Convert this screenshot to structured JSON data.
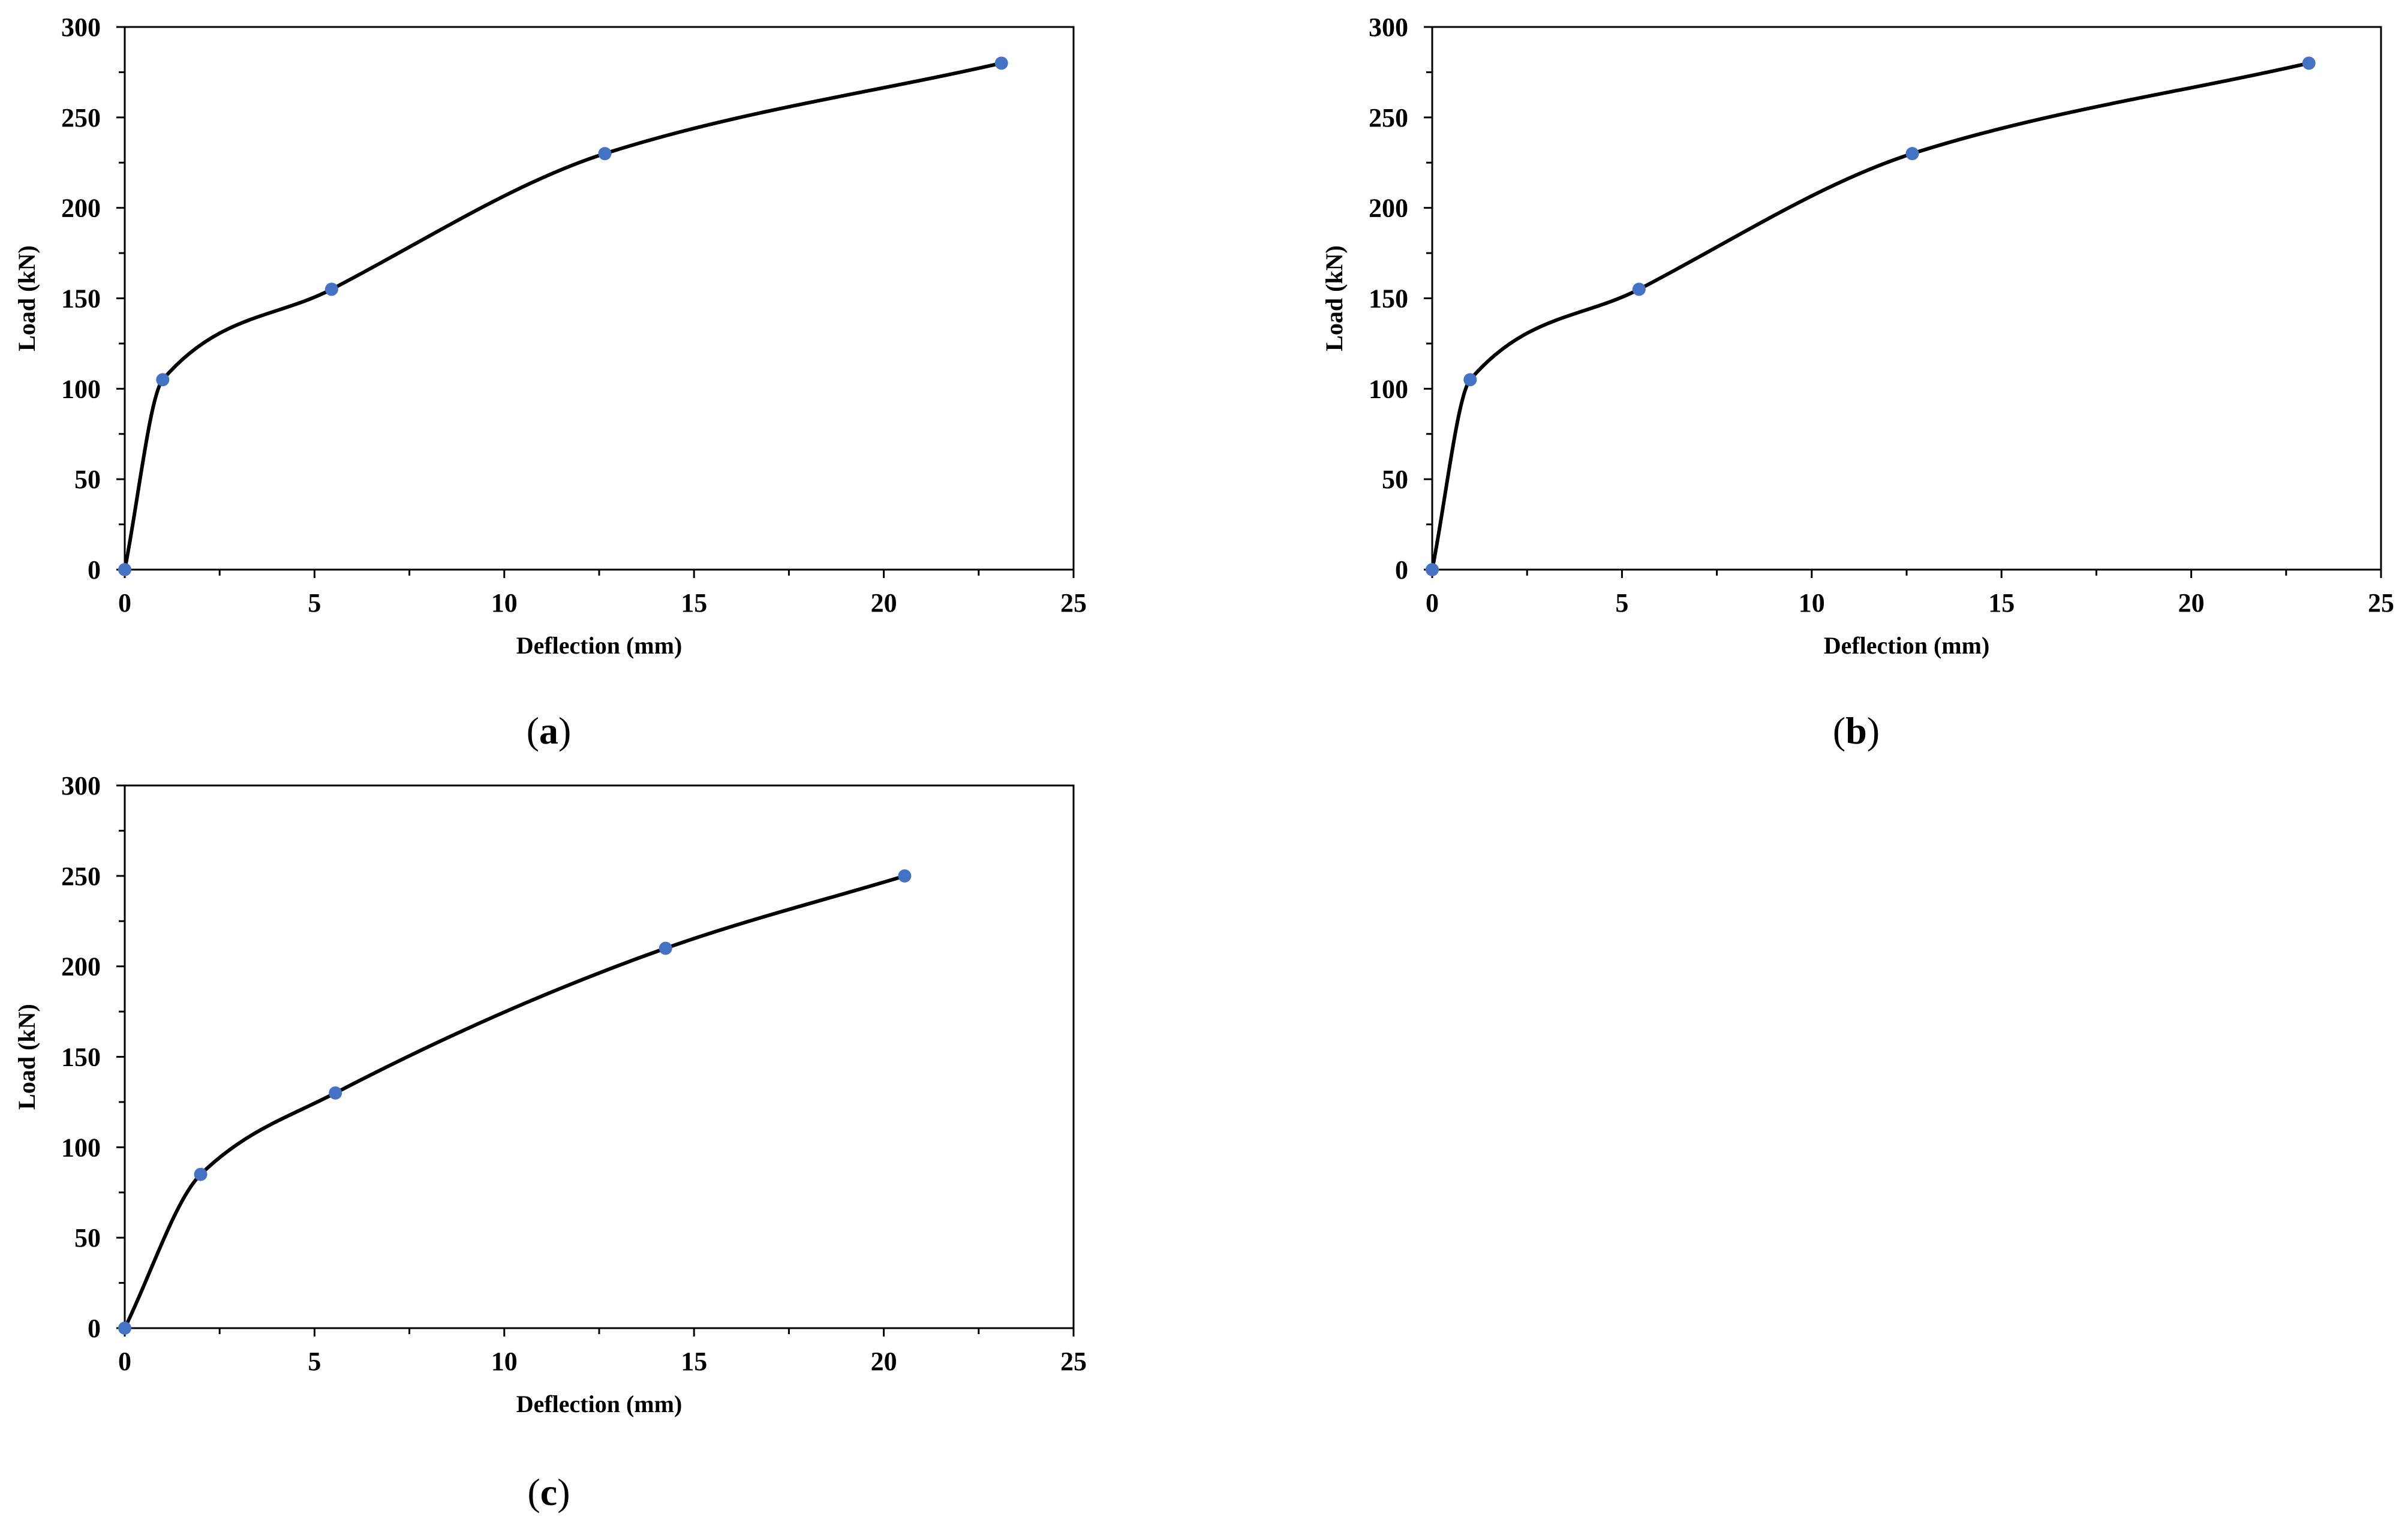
{
  "figure": {
    "panels_count": 3
  },
  "chart_data": [
    {
      "type": "line",
      "panel_label": "a",
      "xlabel": "Deflection (mm)",
      "ylabel": "Load (kN)",
      "xlim": [
        0,
        25
      ],
      "ylim": [
        0,
        300
      ],
      "x_ticks": [
        0,
        5,
        10,
        15,
        20,
        25
      ],
      "y_ticks": [
        0,
        50,
        100,
        150,
        200,
        250,
        300
      ],
      "series": [
        {
          "x": [
            0,
            1,
            5.45,
            12.65,
            23.1
          ],
          "y": [
            0,
            105,
            155,
            230,
            280
          ]
        }
      ],
      "line_color": "#000000",
      "marker_color": "#4472C4",
      "grid": false,
      "legend": "none"
    },
    {
      "type": "line",
      "panel_label": "b",
      "xlabel": "Deflection (mm)",
      "ylabel": "Load (kN)",
      "xlim": [
        0,
        25
      ],
      "ylim": [
        0,
        300
      ],
      "x_ticks": [
        0,
        5,
        10,
        15,
        20,
        25
      ],
      "y_ticks": [
        0,
        50,
        100,
        150,
        200,
        250,
        300
      ],
      "series": [
        {
          "x": [
            0,
            1,
            5.45,
            12.65,
            23.1
          ],
          "y": [
            0,
            105,
            155,
            230,
            280
          ]
        }
      ],
      "line_color": "#000000",
      "marker_color": "#4472C4",
      "grid": false,
      "legend": "none"
    },
    {
      "type": "line",
      "panel_label": "c",
      "xlabel": "Deflection (mm)",
      "ylabel": "Load (kN)",
      "xlim": [
        0,
        25
      ],
      "ylim": [
        0,
        300
      ],
      "x_ticks": [
        0,
        5,
        10,
        15,
        20,
        25
      ],
      "y_ticks": [
        0,
        50,
        100,
        150,
        200,
        250,
        300
      ],
      "series": [
        {
          "x": [
            0,
            2,
            5.55,
            14.25,
            20.55
          ],
          "y": [
            0,
            85,
            130,
            210,
            250
          ]
        }
      ],
      "line_color": "#000000",
      "marker_color": "#4472C4",
      "grid": false,
      "legend": "none"
    }
  ]
}
